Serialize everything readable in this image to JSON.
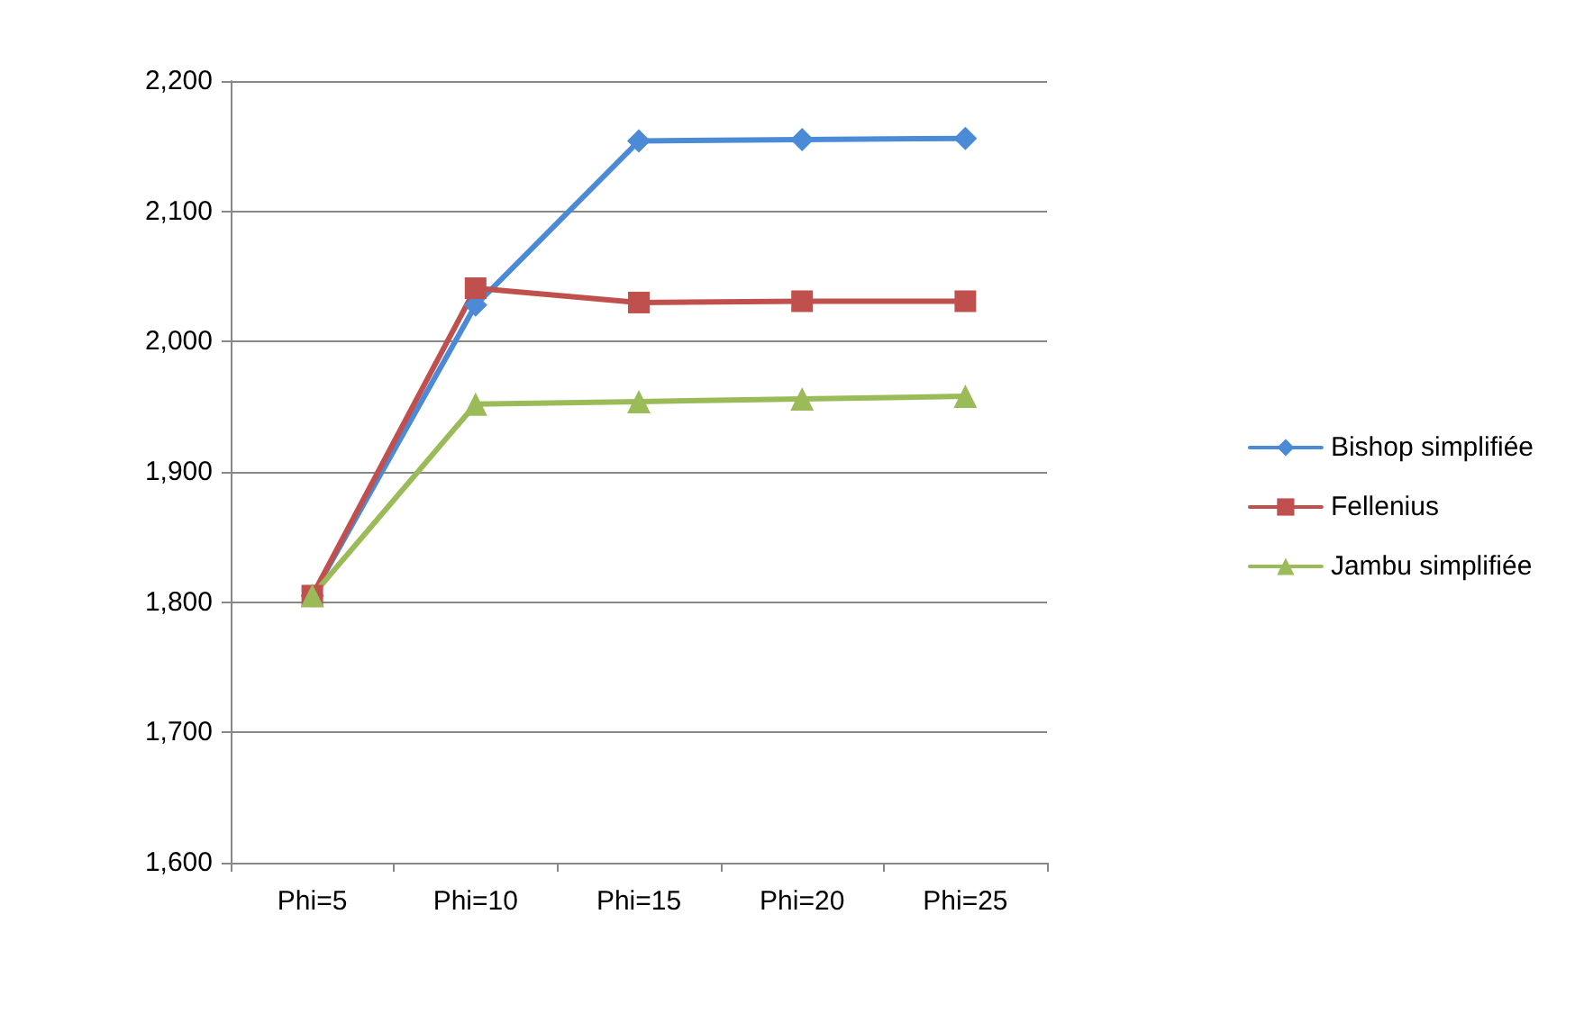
{
  "chart_data": {
    "type": "line",
    "categories": [
      "Phi=5",
      "Phi=10",
      "Phi=15",
      "Phi=20",
      "Phi=25"
    ],
    "series": [
      {
        "name": "Bishop simplifiée",
        "color": "#4a8ad6",
        "marker": "diamond",
        "values": [
          1805,
          2028,
          2154,
          2155,
          2156
        ]
      },
      {
        "name": "Fellenius",
        "color": "#c0504d",
        "marker": "square",
        "values": [
          1805,
          2041,
          2030,
          2031,
          2031
        ]
      },
      {
        "name": "Jambu simplifiée",
        "color": "#9bbb59",
        "marker": "triangle",
        "values": [
          1805,
          1952,
          1954,
          1956,
          1958
        ]
      }
    ],
    "ylim": [
      1600,
      2200
    ],
    "yticks": [
      {
        "value": 1600,
        "label": "1,600"
      },
      {
        "value": 1700,
        "label": "1,700"
      },
      {
        "value": 1800,
        "label": "1,800"
      },
      {
        "value": 1900,
        "label": "1,900"
      },
      {
        "value": 2000,
        "label": "2,000"
      },
      {
        "value": 2100,
        "label": "2,100"
      },
      {
        "value": 2200,
        "label": "2,200"
      }
    ],
    "grid": "y",
    "legend": "right",
    "line_style": "solid"
  }
}
